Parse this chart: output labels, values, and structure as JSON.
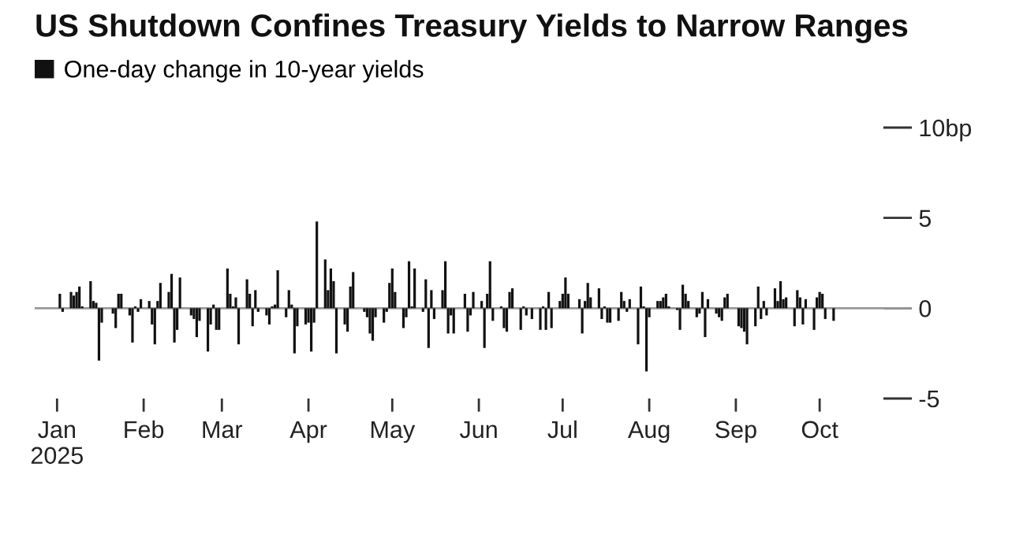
{
  "chart_data": {
    "type": "bar",
    "title": "US Shutdown Confines Treasury Yields to Narrow Ranges",
    "legend": "top left",
    "x": [
      "2025-01-02",
      "2025-01-03",
      "2025-01-06",
      "2025-01-07",
      "2025-01-08",
      "2025-01-09",
      "2025-01-10",
      "2025-01-13",
      "2025-01-14",
      "2025-01-15",
      "2025-01-16",
      "2025-01-17",
      "2025-01-21",
      "2025-01-22",
      "2025-01-23",
      "2025-01-24",
      "2025-01-27",
      "2025-01-28",
      "2025-01-29",
      "2025-01-30",
      "2025-01-31",
      "2025-02-03",
      "2025-02-04",
      "2025-02-05",
      "2025-02-06",
      "2025-02-07",
      "2025-02-10",
      "2025-02-11",
      "2025-02-12",
      "2025-02-13",
      "2025-02-14",
      "2025-02-18",
      "2025-02-19",
      "2025-02-20",
      "2025-02-21",
      "2025-02-24",
      "2025-02-25",
      "2025-02-26",
      "2025-02-27",
      "2025-02-28",
      "2025-03-03",
      "2025-03-04",
      "2025-03-05",
      "2025-03-06",
      "2025-03-07",
      "2025-03-10",
      "2025-03-11",
      "2025-03-12",
      "2025-03-13",
      "2025-03-14",
      "2025-03-17",
      "2025-03-18",
      "2025-03-19",
      "2025-03-20",
      "2025-03-21",
      "2025-03-24",
      "2025-03-25",
      "2025-03-26",
      "2025-03-27",
      "2025-03-28",
      "2025-03-31",
      "2025-04-01",
      "2025-04-02",
      "2025-04-03",
      "2025-04-04",
      "2025-04-07",
      "2025-04-08",
      "2025-04-09",
      "2025-04-10",
      "2025-04-11",
      "2025-04-14",
      "2025-04-15",
      "2025-04-16",
      "2025-04-17",
      "2025-04-21",
      "2025-04-22",
      "2025-04-23",
      "2025-04-24",
      "2025-04-25",
      "2025-04-28",
      "2025-04-29",
      "2025-04-30",
      "2025-05-01",
      "2025-05-02",
      "2025-05-05",
      "2025-05-06",
      "2025-05-07",
      "2025-05-08",
      "2025-05-09",
      "2025-05-12",
      "2025-05-13",
      "2025-05-14",
      "2025-05-15",
      "2025-05-16",
      "2025-05-19",
      "2025-05-20",
      "2025-05-21",
      "2025-05-22",
      "2025-05-23",
      "2025-05-27",
      "2025-05-28",
      "2025-05-29",
      "2025-05-30",
      "2025-06-02",
      "2025-06-03",
      "2025-06-04",
      "2025-06-05",
      "2025-06-06",
      "2025-06-09",
      "2025-06-10",
      "2025-06-11",
      "2025-06-12",
      "2025-06-13",
      "2025-06-16",
      "2025-06-17",
      "2025-06-18",
      "2025-06-20",
      "2025-06-23",
      "2025-06-24",
      "2025-06-25",
      "2025-06-26",
      "2025-06-27",
      "2025-06-30",
      "2025-07-01",
      "2025-07-02",
      "2025-07-03",
      "2025-07-07",
      "2025-07-08",
      "2025-07-09",
      "2025-07-10",
      "2025-07-11",
      "2025-07-14",
      "2025-07-15",
      "2025-07-16",
      "2025-07-17",
      "2025-07-18",
      "2025-07-21",
      "2025-07-22",
      "2025-07-23",
      "2025-07-24",
      "2025-07-25",
      "2025-07-28",
      "2025-07-29",
      "2025-07-30",
      "2025-07-31",
      "2025-08-01",
      "2025-08-04",
      "2025-08-05",
      "2025-08-06",
      "2025-08-07",
      "2025-08-08",
      "2025-08-11",
      "2025-08-12",
      "2025-08-13",
      "2025-08-14",
      "2025-08-15",
      "2025-08-18",
      "2025-08-19",
      "2025-08-20",
      "2025-08-21",
      "2025-08-22",
      "2025-08-25",
      "2025-08-26",
      "2025-08-27",
      "2025-08-28",
      "2025-08-29",
      "2025-09-02",
      "2025-09-03",
      "2025-09-04",
      "2025-09-05",
      "2025-09-08",
      "2025-09-09",
      "2025-09-10",
      "2025-09-11",
      "2025-09-12",
      "2025-09-15",
      "2025-09-16",
      "2025-09-17",
      "2025-09-18",
      "2025-09-19",
      "2025-09-22",
      "2025-09-23",
      "2025-09-24",
      "2025-09-25",
      "2025-09-26",
      "2025-09-29",
      "2025-09-30",
      "2025-10-01",
      "2025-10-02",
      "2025-10-03",
      "2025-10-06"
    ],
    "series": [
      {
        "name": "One-day change in 10-year yields",
        "color": "#111111",
        "values": [
          0.8,
          -0.2,
          0.9,
          0.7,
          0.9,
          1.2,
          0.1,
          1.5,
          0.4,
          0.3,
          -2.9,
          -0.8,
          -0.3,
          -1.1,
          0.8,
          0.8,
          -0.4,
          -1.9,
          0.1,
          -0.2,
          0.5,
          0.4,
          -0.9,
          -2.0,
          0.4,
          1.4,
          0.9,
          1.9,
          -1.9,
          -1.2,
          1.7,
          -0.4,
          -0.6,
          -1.6,
          -0.7,
          -2.4,
          -0.9,
          0.2,
          -1.2,
          -1.2,
          2.2,
          0.8,
          0.1,
          0.6,
          -2.0,
          1.6,
          0.8,
          -1.0,
          1.0,
          -0.2,
          -0.4,
          -0.9,
          0.1,
          0.2,
          2.1,
          -0.5,
          1.0,
          0.2,
          -2.5,
          -1.0,
          -0.9,
          -0.8,
          -2.4,
          -0.8,
          4.8,
          2.7,
          1.0,
          2.2,
          1.5,
          -2.5,
          -0.9,
          -1.3,
          1.2,
          2.0,
          -0.2,
          -0.5,
          -1.4,
          -1.8,
          -0.5,
          -0.8,
          -0.2,
          1.4,
          2.2,
          0.9,
          -1.1,
          -0.5,
          2.6,
          0.1,
          2.2,
          -0.2,
          1.6,
          -2.2,
          1.0,
          -0.6,
          1.0,
          2.6,
          -1.4,
          -0.4,
          -1.4,
          0.8,
          -1.3,
          -0.4,
          0.9,
          0.4,
          -2.2,
          0.8,
          2.6,
          -0.7,
          0.1,
          -1.1,
          -1.3,
          0.9,
          1.1,
          -1.2,
          0.1,
          -0.4,
          -0.6,
          -1.2,
          0.1,
          -1.2,
          0.9,
          -1.1,
          0.4,
          0.8,
          1.7,
          0.8,
          0.5,
          -1.4,
          0.4,
          1.4,
          0.6,
          1.1,
          -0.6,
          0.1,
          -0.8,
          -0.8,
          -0.7,
          0.9,
          0.4,
          -0.2,
          0.5,
          -2.0,
          1.2,
          0.1,
          -3.5,
          -0.5,
          0.4,
          0.4,
          0.6,
          0.8,
          0.1,
          -0.1,
          -1.2,
          1.3,
          0.8,
          0.4,
          -0.5,
          -0.3,
          0.9,
          -1.6,
          0.5,
          -0.3,
          -0.5,
          -0.7,
          0.6,
          0.8,
          -1.0,
          -1.1,
          -1.3,
          -2.0,
          -1.0,
          1.2,
          -0.6,
          0.4,
          -0.4,
          1.1,
          0.4,
          1.5,
          0.5,
          0.6,
          -1.0,
          1.0,
          0.6,
          -0.9,
          0.5,
          -1.2,
          0.6,
          0.9,
          0.8,
          -0.6,
          -0.7
        ]
      }
    ],
    "xlim": [
      "2024-12-24",
      "2025-11-03"
    ],
    "xticks": [
      {
        "value": "2025-01-01",
        "label": "Jan\n2025"
      },
      {
        "value": "2025-02-01",
        "label": "Feb"
      },
      {
        "value": "2025-03-01",
        "label": "Mar"
      },
      {
        "value": "2025-04-01",
        "label": "Apr"
      },
      {
        "value": "2025-05-01",
        "label": "May"
      },
      {
        "value": "2025-06-01",
        "label": "Jun"
      },
      {
        "value": "2025-07-01",
        "label": "Jul"
      },
      {
        "value": "2025-08-01",
        "label": "Aug"
      },
      {
        "value": "2025-09-01",
        "label": "Sep"
      },
      {
        "value": "2025-10-01",
        "label": "Oct"
      }
    ],
    "ylim": [
      -5,
      10
    ],
    "yticks": [
      -5,
      0,
      5,
      {
        "value": 10,
        "label": "10bp"
      }
    ],
    "ref_lines": [
      {
        "axis": "y",
        "value": 0,
        "color": "#999999"
      }
    ]
  }
}
